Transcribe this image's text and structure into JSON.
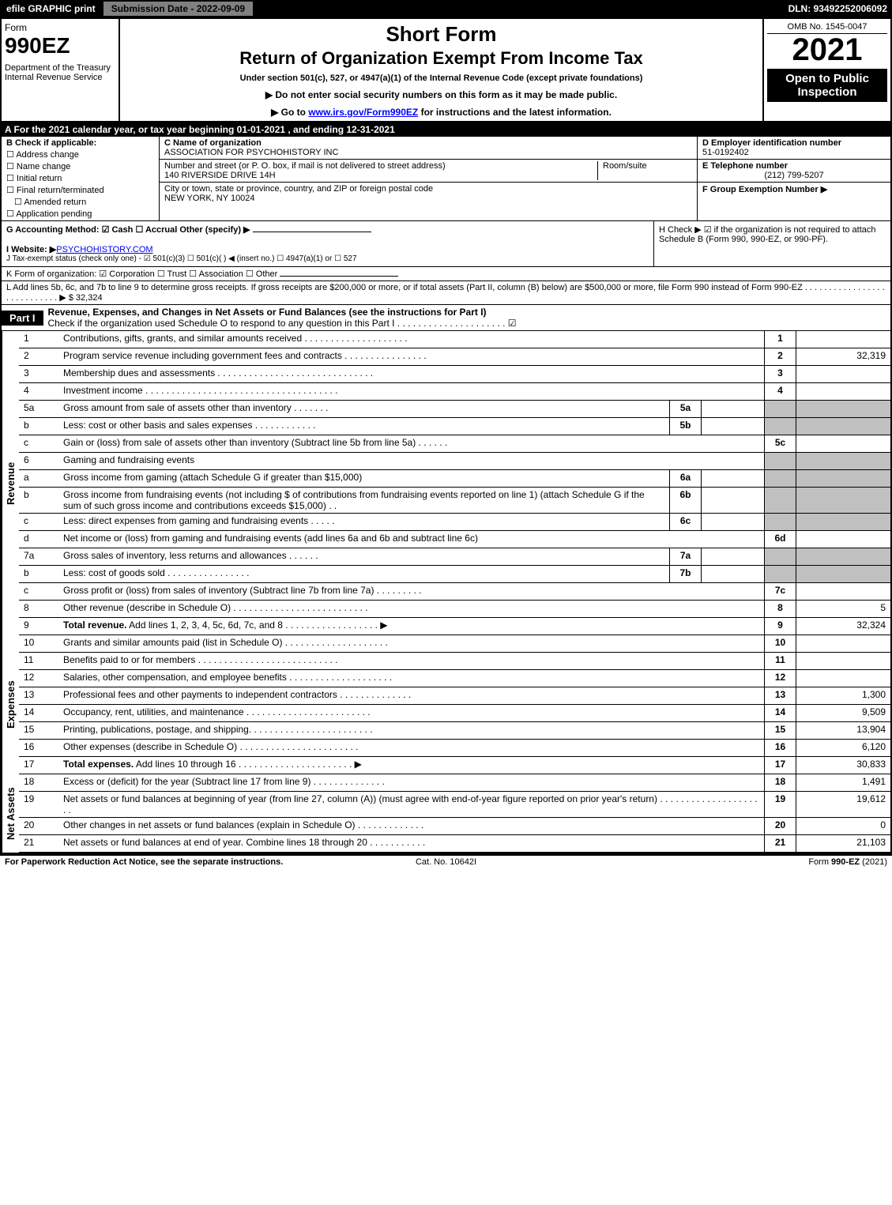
{
  "topbar": {
    "efile": "efile GRAPHIC print",
    "subdate": "Submission Date - 2022-09-09",
    "dln": "DLN: 93492252006092"
  },
  "header": {
    "formword": "Form",
    "formnum": "990EZ",
    "dept": "Department of the Treasury\nInternal Revenue Service",
    "short": "Short Form",
    "return": "Return of Organization Exempt From Income Tax",
    "under": "Under section 501(c), 527, or 4947(a)(1) of the Internal Revenue Code (except private foundations)",
    "instr1": "▶ Do not enter social security numbers on this form as it may be made public.",
    "instr2_pre": "▶ Go to ",
    "instr2_link": "www.irs.gov/Form990EZ",
    "instr2_post": " for instructions and the latest information.",
    "omb": "OMB No. 1545-0047",
    "year": "2021",
    "inspect": "Open to Public Inspection"
  },
  "secA": "A  For the 2021 calendar year, or tax year beginning 01-01-2021  , and ending 12-31-2021",
  "colB": {
    "lbl": "B  Check if applicable:",
    "o1": "Address change",
    "o2": "Name change",
    "o3": "Initial return",
    "o4": "Final return/terminated",
    "o5": "Amended return",
    "o6": "Application pending"
  },
  "colC": {
    "nameLbl": "C Name of organization",
    "name": "ASSOCIATION FOR PSYCHOHISTORY INC",
    "streetLbl": "Number and street (or P. O. box, if mail is not delivered to street address)",
    "street": "140 RIVERSIDE DRIVE 14H",
    "roomLbl": "Room/suite",
    "cityLbl": "City or town, state or province, country, and ZIP or foreign postal code",
    "city": "NEW YORK, NY   10024"
  },
  "colD": {
    "einLbl": "D Employer identification number",
    "ein": "51-0192402",
    "telLbl": "E Telephone number",
    "tel": "(212) 799-5207",
    "grpLbl": "F Group Exemption Number  ▶"
  },
  "secG": {
    "acct": "G Accounting Method:   ☑ Cash   ☐ Accrual   Other (specify) ▶",
    "website_pre": "I Website: ▶",
    "website": "PSYCHOHISTORY.COM",
    "tax": "J Tax-exempt status (check only one) -  ☑ 501(c)(3)  ☐  501(c)(  ) ◀ (insert no.)  ☐  4947(a)(1) or  ☐  527"
  },
  "secH": "H  Check ▶  ☑  if the organization is not required to attach Schedule B (Form 990, 990-EZ, or 990-PF).",
  "lineK": "K Form of organization:   ☑ Corporation   ☐ Trust   ☐ Association   ☐ Other",
  "lineL": "L Add lines 5b, 6c, and 7b to line 9 to determine gross receipts. If gross receipts are $200,000 or more, or if total assets (Part II, column (B) below) are $500,000 or more, file Form 990 instead of Form 990-EZ  .  .  .  .  .  .  .  .  .  .  .  .  .  .  .  .  .  .  .  .  .  .  .  .  .  .  .  .  ▶ $ 32,324",
  "partI": {
    "tag": "Part I",
    "title": "Revenue, Expenses, and Changes in Net Assets or Fund Balances (see the instructions for Part I)",
    "sub": "Check if the organization used Schedule O to respond to any question in this Part I  .  .  .  .  .  .  .  .  .  .  .  .  .  .  .  .  .  .  .  .  .   ☑"
  },
  "revenue_label": "Revenue",
  "expenses_label": "Expenses",
  "netassets_label": "Net Assets",
  "rows_rev": [
    {
      "n": "1",
      "d": "Contributions, gifts, grants, and similar amounts received  .  .  .  .  .  .  .  .  .  .  .  .  .  .  .  .  .  .  .  .",
      "ln": "1",
      "v": ""
    },
    {
      "n": "2",
      "d": "Program service revenue including government fees and contracts  .  .  .  .  .  .  .  .  .  .  .  .  .  .  .  .",
      "ln": "2",
      "v": "32,319"
    },
    {
      "n": "3",
      "d": "Membership dues and assessments  .  .  .  .  .  .  .  .  .  .  .  .  .  .  .  .  .  .  .  .  .  .  .  .  .  .  .  .  .  .",
      "ln": "3",
      "v": ""
    },
    {
      "n": "4",
      "d": "Investment income  .  .  .  .  .  .  .  .  .  .  .  .  .  .  .  .  .  .  .  .  .  .  .  .  .  .  .  .  .  .  .  .  .  .  .  .  .",
      "ln": "4",
      "v": ""
    }
  ],
  "rows_5": [
    {
      "n": "5a",
      "d": "Gross amount from sale of assets other than inventory  .  .  .  .  .  .  .",
      "sub": "5a"
    },
    {
      "n": "b",
      "d": "Less: cost or other basis and sales expenses  .  .  .  .  .  .  .  .  .  .  .  .",
      "sub": "5b"
    }
  ],
  "row_5c": {
    "n": "c",
    "d": "Gain or (loss) from sale of assets other than inventory (Subtract line 5b from line 5a)  .  .  .  .  .  .",
    "ln": "5c",
    "v": ""
  },
  "row_6head": {
    "n": "6",
    "d": "Gaming and fundraising events"
  },
  "row_6a": {
    "n": "a",
    "d": "Gross income from gaming (attach Schedule G if greater than $15,000)",
    "sub": "6a"
  },
  "row_6b": {
    "n": "b",
    "d": "Gross income from fundraising events (not including $                          of contributions from fundraising events reported on line 1) (attach Schedule G if the sum of such gross income and contributions exceeds $15,000)   .  .",
    "sub": "6b"
  },
  "row_6c": {
    "n": "c",
    "d": "Less: direct expenses from gaming and fundraising events   .  .  .  .  .",
    "sub": "6c"
  },
  "row_6d": {
    "n": "d",
    "d": "Net income or (loss) from gaming and fundraising events (add lines 6a and 6b and subtract line 6c)",
    "ln": "6d",
    "v": ""
  },
  "rows_7": [
    {
      "n": "7a",
      "d": "Gross sales of inventory, less returns and allowances  .  .  .  .  .  .",
      "sub": "7a"
    },
    {
      "n": "b",
      "d": "Less: cost of goods sold         .  .  .  .  .  .  .  .  .  .  .  .  .  .  .  .",
      "sub": "7b"
    }
  ],
  "row_7c": {
    "n": "c",
    "d": "Gross profit or (loss) from sales of inventory (Subtract line 7b from line 7a)  .  .  .  .  .  .  .  .  .",
    "ln": "7c",
    "v": ""
  },
  "row_8": {
    "n": "8",
    "d": "Other revenue (describe in Schedule O)  .  .  .  .  .  .  .  .  .  .  .  .  .  .  .  .  .  .  .  .  .  .  .  .  .  .",
    "ln": "8",
    "v": "5"
  },
  "row_9": {
    "n": "9",
    "d": "Total revenue. Add lines 1, 2, 3, 4, 5c, 6d, 7c, and 8   .  .  .  .  .  .  .  .  .  .  .  .  .  .  .  .  .  .   ▶",
    "ln": "9",
    "v": "32,324",
    "bold": true
  },
  "rows_exp": [
    {
      "n": "10",
      "d": "Grants and similar amounts paid (list in Schedule O)  .  .  .  .  .  .  .  .  .  .  .  .  .  .  .  .  .  .  .  .",
      "ln": "10",
      "v": ""
    },
    {
      "n": "11",
      "d": "Benefits paid to or for members      .  .  .  .  .  .  .  .  .  .  .  .  .  .  .  .  .  .  .  .  .  .  .  .  .  .  .",
      "ln": "11",
      "v": ""
    },
    {
      "n": "12",
      "d": "Salaries, other compensation, and employee benefits .  .  .  .  .  .  .  .  .  .  .  .  .  .  .  .  .  .  .  .",
      "ln": "12",
      "v": ""
    },
    {
      "n": "13",
      "d": "Professional fees and other payments to independent contractors  .  .  .  .  .  .  .  .  .  .  .  .  .  .",
      "ln": "13",
      "v": "1,300"
    },
    {
      "n": "14",
      "d": "Occupancy, rent, utilities, and maintenance .  .  .  .  .  .  .  .  .  .  .  .  .  .  .  .  .  .  .  .  .  .  .  .",
      "ln": "14",
      "v": "9,509"
    },
    {
      "n": "15",
      "d": "Printing, publications, postage, and shipping.  .  .  .  .  .  .  .  .  .  .  .  .  .  .  .  .  .  .  .  .  .  .  .",
      "ln": "15",
      "v": "13,904"
    },
    {
      "n": "16",
      "d": "Other expenses (describe in Schedule O)     .  .  .  .  .  .  .  .  .  .  .  .  .  .  .  .  .  .  .  .  .  .  .",
      "ln": "16",
      "v": "6,120"
    },
    {
      "n": "17",
      "d": "Total expenses. Add lines 10 through 16     .  .  .  .  .  .  .  .  .  .  .  .  .  .  .  .  .  .  .  .  .  .   ▶",
      "ln": "17",
      "v": "30,833",
      "bold": true
    }
  ],
  "rows_net": [
    {
      "n": "18",
      "d": "Excess or (deficit) for the year (Subtract line 17 from line 9)        .  .  .  .  .  .  .  .  .  .  .  .  .  .",
      "ln": "18",
      "v": "1,491"
    },
    {
      "n": "19",
      "d": "Net assets or fund balances at beginning of year (from line 27, column (A)) (must agree with end-of-year figure reported on prior year's return) .  .  .  .  .  .  .  .  .  .  .  .  .  .  .  .  .  .  .  .  .",
      "ln": "19",
      "v": "19,612"
    },
    {
      "n": "20",
      "d": "Other changes in net assets or fund balances (explain in Schedule O) .  .  .  .  .  .  .  .  .  .  .  .  .",
      "ln": "20",
      "v": "0"
    },
    {
      "n": "21",
      "d": "Net assets or fund balances at end of year. Combine lines 18 through 20 .  .  .  .  .  .  .  .  .  .  .",
      "ln": "21",
      "v": "21,103"
    }
  ],
  "footer": {
    "l": "For Paperwork Reduction Act Notice, see the separate instructions.",
    "c": "Cat. No. 10642I",
    "r_pre": "Form ",
    "r_bold": "990-EZ",
    "r_post": " (2021)"
  }
}
